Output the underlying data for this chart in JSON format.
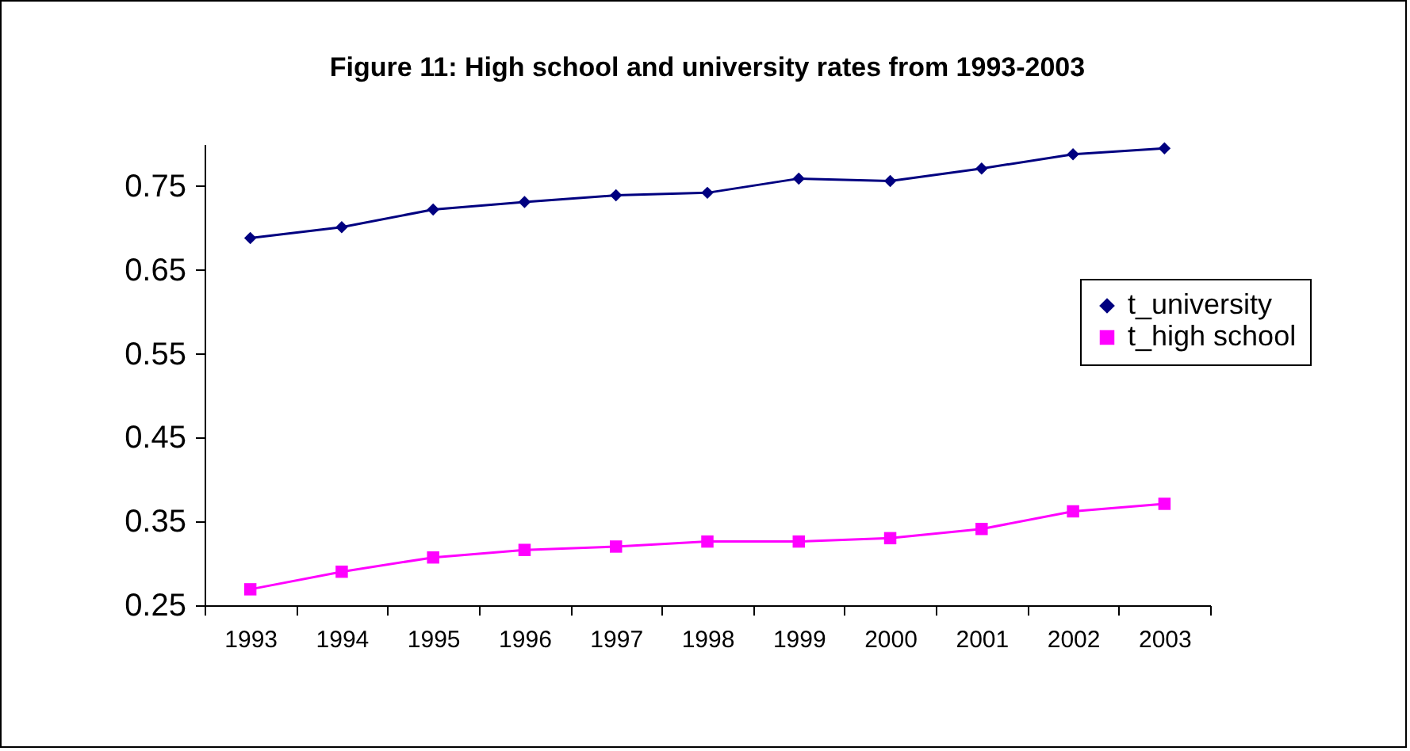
{
  "chart_data": {
    "type": "line",
    "title": "Figure 11: High school and university rates from 1993-2003",
    "categories": [
      "1993",
      "1994",
      "1995",
      "1996",
      "1997",
      "1998",
      "1999",
      "2000",
      "2001",
      "2002",
      "2003"
    ],
    "series": [
      {
        "name": "t_university",
        "color": "#000080",
        "marker": "diamond",
        "values": [
          0.688,
          0.701,
          0.722,
          0.731,
          0.739,
          0.742,
          0.759,
          0.756,
          0.771,
          0.788,
          0.795
        ]
      },
      {
        "name": "t_high school",
        "color": "#ff00ff",
        "marker": "square",
        "values": [
          0.269,
          0.29,
          0.307,
          0.316,
          0.32,
          0.326,
          0.326,
          0.33,
          0.341,
          0.362,
          0.371
        ]
      }
    ],
    "ylim": [
      0.25,
      0.8
    ],
    "yticks": [
      0.25,
      0.35,
      0.45,
      0.55,
      0.65,
      0.75
    ],
    "grid": false,
    "legend": "right",
    "line_style": "solid"
  }
}
